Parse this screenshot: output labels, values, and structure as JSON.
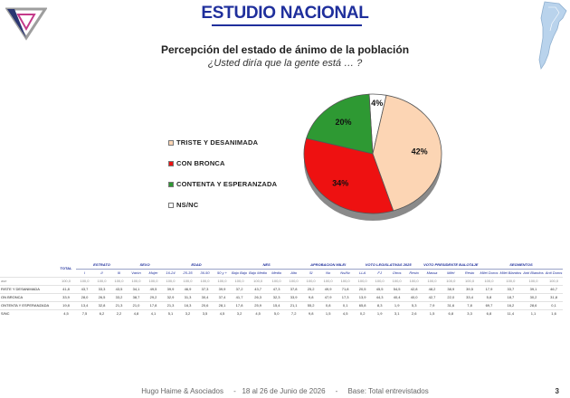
{
  "header": {
    "title": "ESTUDIO NACIONAL"
  },
  "chart_data": {
    "type": "pie",
    "title": "Percepción del estado de ánimo de la población",
    "subtitle": "¿Usted diría que la gente está … ?",
    "slices": [
      {
        "label": "TRISTE Y DESANIMADA",
        "value": 42,
        "display": "42%",
        "color": "#fcd5b4"
      },
      {
        "label": "CON BRONCA",
        "value": 34,
        "display": "34%",
        "color": "#ee1111"
      },
      {
        "label": "CONTENTA Y ESPERANZADA",
        "value": 20,
        "display": "20%",
        "color": "#2e9933"
      },
      {
        "label": "NS/NC",
        "value": 4,
        "display": "4%",
        "color": "#ffffff"
      }
    ]
  },
  "table": {
    "total_label": "TOTAL",
    "groups": [
      {
        "name": "ESTRATO",
        "cols": [
          "I",
          "II",
          "III"
        ]
      },
      {
        "name": "SEXO",
        "cols": [
          "Varón",
          "Mujer"
        ]
      },
      {
        "name": "EDAD",
        "cols": [
          "16-24",
          "25-35",
          "36-50",
          "50 y +"
        ]
      },
      {
        "name": "NES",
        "cols": [
          "Bajo Bajo",
          "Bajo Medio",
          "Medio",
          "Alto"
        ]
      },
      {
        "name": "APROBACION MILEI",
        "cols": [
          "Si",
          "No",
          "Ns/Nc"
        ]
      },
      {
        "name": "VOTO LEGISLATIVAS 2025",
        "cols": [
          "LLA",
          "FJ",
          "Otros",
          "Resto"
        ]
      },
      {
        "name": "VOTO PRESIDENTE BALOTAJE",
        "cols": [
          "Massa",
          "Milei",
          "Resto"
        ]
      },
      {
        "name": "SEGMENTOS",
        "cols": [
          "Milei Duros",
          "Milei Blandos",
          "Anti Blandos",
          "Anti Duros"
        ]
      }
    ],
    "rows": [
      {
        "label": "ase",
        "total": "100,0",
        "values": [
          "100,0",
          "100,0",
          "100,0",
          "100,0",
          "100,0",
          "100,0",
          "100,0",
          "100,0",
          "100,0",
          "100,0",
          "100,0",
          "100,0",
          "100,0",
          "100,0",
          "100,0",
          "100,0",
          "100,0",
          "100,0",
          "100,0",
          "100,0",
          "100,0",
          "100,0",
          "100,0",
          "100,0",
          "100,0",
          "100,0",
          "100,0"
        ]
      },
      {
        "label": "RISTE Y DESANIMADA",
        "total": "41,8",
        "values": [
          "43,7",
          "33,3",
          "43,5",
          "34,1",
          "49,5",
          "39,9",
          "46,9",
          "37,3",
          "39,9",
          "37,2",
          "43,7",
          "47,3",
          "37,8",
          "25,2",
          "49,9",
          "71,8",
          "20,5",
          "45,5",
          "54,5",
          "42,8",
          "48,2",
          "38,9",
          "39,5",
          "17,9",
          "33,7",
          "39,1",
          "46,7"
        ]
      },
      {
        "label": "ON BRONCA",
        "total": "33,9",
        "values": [
          "28,0",
          "26,5",
          "33,2",
          "38,7",
          "29,2",
          "32,9",
          "31,3",
          "30,4",
          "37,4",
          "41,7",
          "26,3",
          "32,3",
          "33,9",
          "9,8",
          "47,9",
          "17,3",
          "13,9",
          "44,3",
          "40,4",
          "40,0",
          "42,7",
          "22,0",
          "33,4",
          "5,8",
          "18,7",
          "30,2",
          "31,8"
        ]
      },
      {
        "label": "ONTENTA Y ESPERANZADA",
        "total": "19,8",
        "values": [
          "13,4",
          "32,8",
          "21,3",
          "21,0",
          "17,8",
          "21,3",
          "16,3",
          "20,6",
          "28,1",
          "17,8",
          "25,9",
          "15,4",
          "21,1",
          "55,2",
          "0,8",
          "0,1",
          "65,8",
          "8,3",
          "1,9",
          "5,3",
          "7,9",
          "31,6",
          "7,8",
          "69,7",
          "16,2",
          "28,6",
          "0,1"
        ]
      },
      {
        "label": "S/NC",
        "total": "4,5",
        "values": [
          "7,5",
          "6,2",
          "2,2",
          "4,8",
          "4,1",
          "5,1",
          "3,2",
          "3,5",
          "4,5",
          "3,2",
          "4,5",
          "5,0",
          "7,2",
          "9,8",
          "1,5",
          "4,5",
          "0,2",
          "1,9",
          "3,1",
          "2,6",
          "1,5",
          "6,8",
          "3,3",
          "6,8",
          "11,4",
          "1,1",
          "1,6"
        ]
      }
    ]
  },
  "footer": {
    "agency": "Hugo Haime & Asociados",
    "date": "18 al 26 de Junio de 2026",
    "base": "Base: Total entrevistados",
    "sep": "-",
    "page": "3"
  }
}
